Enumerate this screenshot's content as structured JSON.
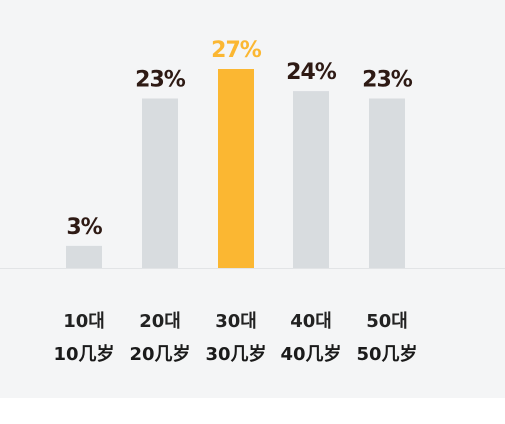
{
  "chart_data": {
    "type": "bar",
    "categories": [
      "10대",
      "20대",
      "30대",
      "40대",
      "50대"
    ],
    "category_sublabels": [
      "10几岁",
      "20几岁",
      "30几岁",
      "40几岁",
      "50几岁"
    ],
    "values": [
      3,
      23,
      27,
      24,
      23
    ],
    "value_labels": [
      "3%",
      "23%",
      "27%",
      "24%",
      "23%"
    ],
    "highlight_index": 2,
    "ylim": [
      0,
      27
    ],
    "grid": false,
    "legend": "none"
  },
  "colors": {
    "panel_background": "#f4f5f6",
    "bar_default": "#d8dcdf",
    "bar_highlight": "#fbb732",
    "label_default": "#2e1a14",
    "label_highlight": "#fbb732",
    "baseline": "#e2e4e6"
  }
}
